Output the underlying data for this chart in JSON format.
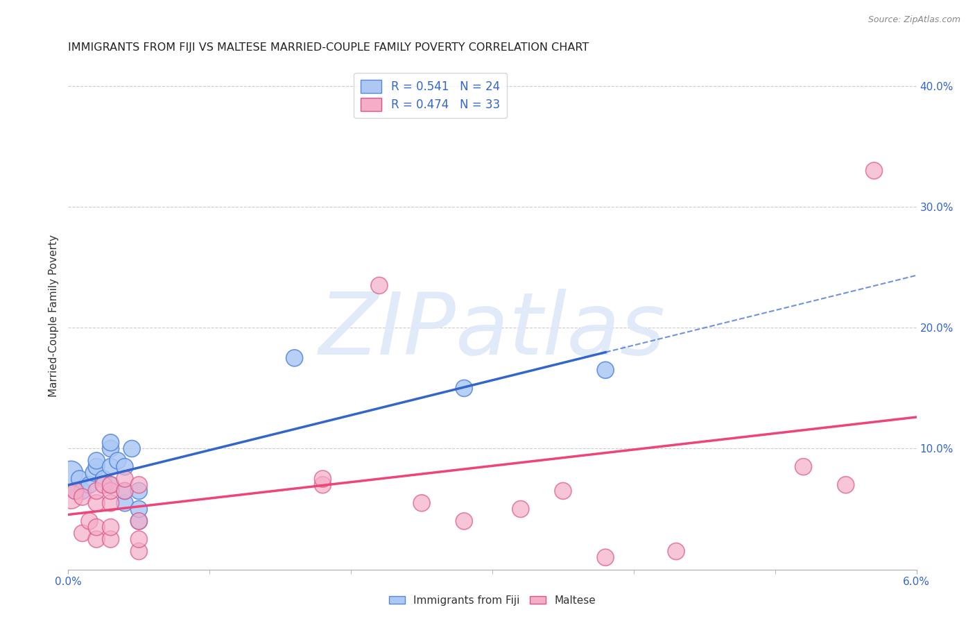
{
  "title": "IMMIGRANTS FROM FIJI VS MALTESE MARRIED-COUPLE FAMILY POVERTY CORRELATION CHART",
  "source": "Source: ZipAtlas.com",
  "xlabel": "",
  "ylabel": "Married-Couple Family Poverty",
  "xlim": [
    0.0,
    0.06
  ],
  "ylim": [
    0.0,
    0.42
  ],
  "xticks": [
    0.0,
    0.06
  ],
  "xticklabels": [
    "0.0%",
    "6.0%"
  ],
  "yticks_right": [
    0.1,
    0.2,
    0.3,
    0.4
  ],
  "ytick_labels_right": [
    "10.0%",
    "20.0%",
    "30.0%",
    "40.0%"
  ],
  "fiji_R": 0.541,
  "fiji_N": 24,
  "maltese_R": 0.474,
  "maltese_N": 33,
  "fiji_color": "#adc8f5",
  "maltese_color": "#f5adc8",
  "fiji_edge_color": "#5588dd",
  "maltese_edge_color": "#dd5588",
  "fiji_line_color": "#3366cc",
  "maltese_line_color": "#ee4477",
  "watermark": "ZIPatlas",
  "fiji_x": [
    0.0002,
    0.0005,
    0.0008,
    0.001,
    0.0015,
    0.0018,
    0.002,
    0.002,
    0.0025,
    0.003,
    0.003,
    0.003,
    0.003,
    0.0035,
    0.004,
    0.004,
    0.004,
    0.0045,
    0.005,
    0.005,
    0.005,
    0.016,
    0.028,
    0.038
  ],
  "fiji_y": [
    0.08,
    0.065,
    0.075,
    0.065,
    0.07,
    0.08,
    0.085,
    0.09,
    0.075,
    0.07,
    0.085,
    0.1,
    0.105,
    0.09,
    0.055,
    0.065,
    0.085,
    0.1,
    0.04,
    0.05,
    0.065,
    0.175,
    0.15,
    0.165
  ],
  "fiji_sizes": [
    600,
    300,
    300,
    300,
    300,
    300,
    300,
    300,
    300,
    300,
    300,
    300,
    300,
    300,
    300,
    300,
    300,
    300,
    300,
    300,
    300,
    300,
    300,
    300
  ],
  "maltese_x": [
    0.0002,
    0.0005,
    0.001,
    0.001,
    0.0015,
    0.002,
    0.002,
    0.002,
    0.002,
    0.0025,
    0.003,
    0.003,
    0.003,
    0.003,
    0.003,
    0.004,
    0.004,
    0.005,
    0.005,
    0.005,
    0.005,
    0.018,
    0.018,
    0.022,
    0.025,
    0.028,
    0.032,
    0.035,
    0.038,
    0.043,
    0.052,
    0.055,
    0.057
  ],
  "maltese_y": [
    0.06,
    0.065,
    0.06,
    0.03,
    0.04,
    0.025,
    0.035,
    0.055,
    0.065,
    0.07,
    0.025,
    0.035,
    0.055,
    0.065,
    0.07,
    0.065,
    0.075,
    0.015,
    0.025,
    0.04,
    0.07,
    0.07,
    0.075,
    0.235,
    0.055,
    0.04,
    0.05,
    0.065,
    0.01,
    0.015,
    0.085,
    0.07,
    0.33
  ],
  "maltese_sizes": [
    600,
    300,
    300,
    300,
    300,
    300,
    300,
    300,
    300,
    300,
    300,
    300,
    300,
    300,
    300,
    300,
    300,
    300,
    300,
    300,
    300,
    300,
    300,
    300,
    300,
    300,
    300,
    300,
    300,
    300,
    300,
    300,
    300
  ],
  "background_color": "#ffffff",
  "grid_color": "#cccccc"
}
